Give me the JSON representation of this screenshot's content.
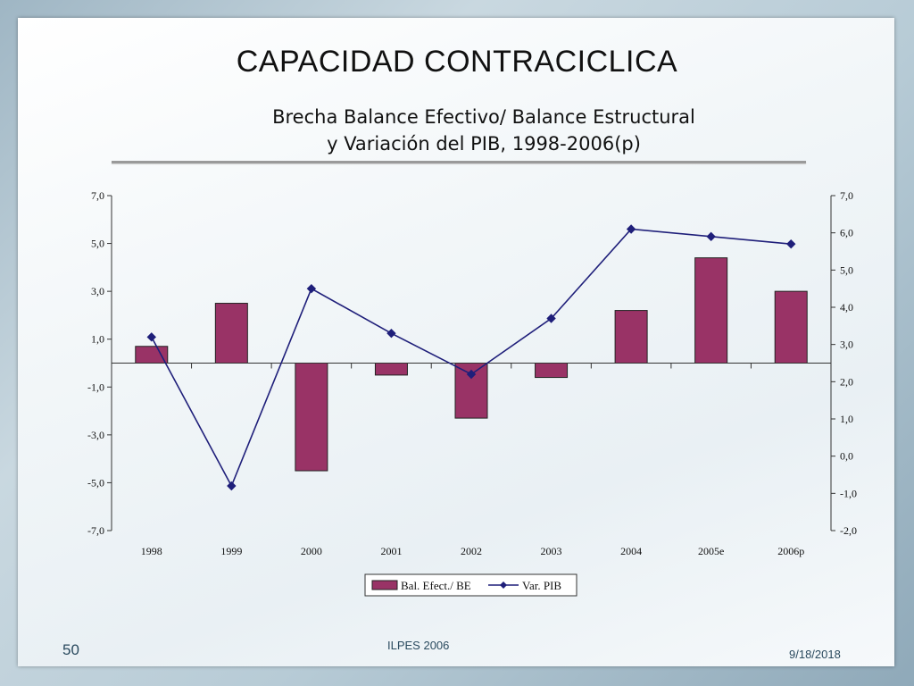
{
  "slide": {
    "title": "CAPACIDAD CONTRACICLICA",
    "subtitle_line1": "Brecha Balance Efectivo/ Balance Estructural",
    "subtitle_line2": "y Variación del PIB, 1998-2006(p)",
    "page_number": "50",
    "footer_org": "ILPES 2006",
    "footer_date": "9/18/2018"
  },
  "chart_data": {
    "type": "bar",
    "categories": [
      "1998",
      "1999",
      "2000",
      "2001",
      "2002",
      "2003",
      "2004",
      "2005e",
      "2006p"
    ],
    "series": [
      {
        "name": "Bal. Efect./ BE",
        "type": "bar",
        "axis": "left",
        "color": "#993366",
        "values": [
          0.7,
          2.5,
          -4.5,
          -0.5,
          -2.3,
          -0.6,
          2.2,
          4.4,
          3.0
        ]
      },
      {
        "name": "Var. PIB",
        "type": "line",
        "axis": "right",
        "color": "#1f1f7a",
        "values": [
          3.2,
          -0.8,
          4.5,
          3.3,
          2.2,
          3.7,
          6.1,
          5.9,
          5.7
        ]
      }
    ],
    "left_axis": {
      "ylim": [
        -7,
        7
      ],
      "ticks": [
        7,
        5,
        3,
        1,
        -1,
        -3,
        -5,
        -7
      ],
      "tick_labels": [
        "7,0",
        "5,0",
        "3,0",
        "1,0",
        "-1,0",
        "-3,0",
        "-5,0",
        "-7,0"
      ]
    },
    "right_axis": {
      "ylim": [
        -2,
        7
      ],
      "ticks": [
        7,
        6,
        5,
        4,
        3,
        2,
        1,
        0,
        -1,
        -2
      ],
      "tick_labels": [
        "7,0",
        "6,0",
        "5,0",
        "4,0",
        "3,0",
        "2,0",
        "1,0",
        "0,0",
        "-1,0",
        "-2,0"
      ]
    },
    "legend_position": "bottom-center",
    "grid": false
  }
}
